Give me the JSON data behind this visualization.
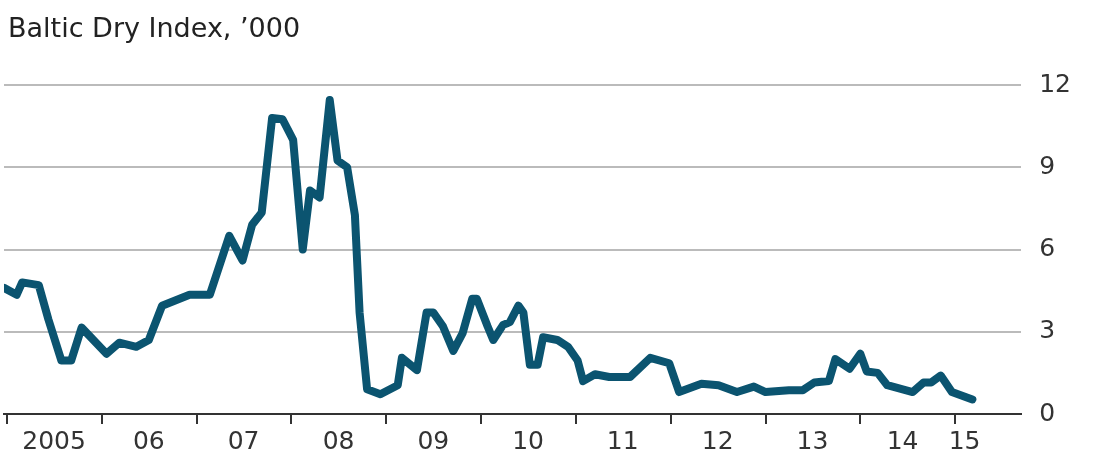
{
  "chart_data": {
    "type": "line",
    "title": "Baltic Dry Index, ’000",
    "x": [
      "2004-12-20",
      "2005-02-07",
      "2005-02-28",
      "2005-05-03",
      "2005-06-09",
      "2005-07-29",
      "2005-09-05",
      "2005-10-15",
      "2006-01-19",
      "2006-03-09",
      "2006-05-14",
      "2006-07-01",
      "2006-08-21",
      "2006-12-05",
      "2007-02-21",
      "2007-05-07",
      "2007-06-27",
      "2007-08-03",
      "2007-09-09",
      "2007-10-19",
      "2007-11-28",
      "2008-01-08",
      "2008-02-14",
      "2008-03-13",
      "2008-04-19",
      "2008-05-28",
      "2008-06-27",
      "2008-08-03",
      "2008-09-02",
      "2008-09-20",
      "2008-10-19",
      "2008-12-09",
      "2009-02-14",
      "2009-03-02",
      "2009-04-29",
      "2009-06-05",
      "2009-07-01",
      "2009-08-07",
      "2009-09-16",
      "2009-10-22",
      "2009-11-28",
      "2009-12-16",
      "2010-01-26",
      "2010-02-17",
      "2010-03-27",
      "2010-04-22",
      "2010-05-25",
      "2010-06-13",
      "2010-07-08",
      "2010-08-07",
      "2010-08-28",
      "2010-10-22",
      "2010-12-02",
      "2011-01-08",
      "2011-01-29",
      "2011-03-16",
      "2011-05-10",
      "2011-07-29",
      "2011-10-15",
      "2011-12-27",
      "2012-02-03",
      "2012-04-29",
      "2012-07-04",
      "2012-09-13",
      "2012-11-17",
      "2013-01-01",
      "2013-04-01",
      "2013-05-25",
      "2013-07-08",
      "2013-09-02",
      "2013-09-27",
      "2013-11-21",
      "2014-01-01",
      "2014-01-26",
      "2014-03-09",
      "2014-04-15",
      "2014-07-22",
      "2014-09-02",
      "2014-10-01",
      "2014-11-07",
      "2014-12-20",
      "2015-03-09"
    ],
    "series": [
      {
        "color": "#0b5470",
        "values": [
          4.6,
          4.35,
          4.8,
          4.7,
          3.45,
          1.95,
          1.95,
          3.15,
          2.2,
          2.6,
          2.45,
          2.7,
          3.95,
          4.35,
          4.35,
          6.5,
          5.6,
          6.9,
          7.35,
          10.8,
          10.75,
          10.0,
          6.0,
          8.15,
          7.9,
          11.45,
          9.25,
          9.0,
          7.25,
          3.7,
          0.9,
          0.72,
          1.05,
          2.05,
          1.6,
          3.7,
          3.7,
          3.2,
          2.3,
          2.95,
          4.2,
          4.2,
          3.2,
          2.7,
          3.25,
          3.35,
          3.95,
          3.7,
          1.8,
          1.8,
          2.8,
          2.7,
          2.45,
          1.95,
          1.2,
          1.45,
          1.35,
          1.35,
          2.05,
          1.85,
          0.8,
          1.1,
          1.05,
          0.8,
          1.0,
          0.8,
          0.87,
          0.87,
          1.15,
          1.2,
          2.0,
          1.65,
          2.2,
          1.55,
          1.5,
          1.05,
          0.8,
          1.15,
          1.15,
          1.4,
          0.8,
          0.53
        ]
      }
    ],
    "xlim": [
      "2004-12-20",
      "2015-09-13"
    ],
    "xticks": [
      {
        "value": "2005-01-01",
        "label": null
      },
      {
        "value": "2005-07-01",
        "label": "2005"
      },
      {
        "value": "2006-01-01",
        "label": null
      },
      {
        "value": "2006-07-01",
        "label": "06"
      },
      {
        "value": "2007-01-01",
        "label": null
      },
      {
        "value": "2007-07-01",
        "label": "07"
      },
      {
        "value": "2008-01-01",
        "label": null
      },
      {
        "value": "2008-07-01",
        "label": "08"
      },
      {
        "value": "2009-01-01",
        "label": null
      },
      {
        "value": "2009-07-01",
        "label": "09"
      },
      {
        "value": "2010-01-01",
        "label": null
      },
      {
        "value": "2010-07-01",
        "label": "10"
      },
      {
        "value": "2011-01-01",
        "label": null
      },
      {
        "value": "2011-07-01",
        "label": "11"
      },
      {
        "value": "2012-01-01",
        "label": null
      },
      {
        "value": "2012-07-01",
        "label": "12"
      },
      {
        "value": "2013-01-01",
        "label": null
      },
      {
        "value": "2013-07-01",
        "label": "13"
      },
      {
        "value": "2014-01-01",
        "label": null
      },
      {
        "value": "2014-06-13",
        "label": "14"
      },
      {
        "value": "2015-01-01",
        "label": null
      },
      {
        "value": "2015-02-07",
        "label": "15"
      }
    ],
    "ylim": [
      0,
      12
    ],
    "yticks": [
      0,
      3,
      6,
      9,
      12
    ],
    "grid": "y",
    "legend": false,
    "marker": "none",
    "line_style": "solid"
  }
}
